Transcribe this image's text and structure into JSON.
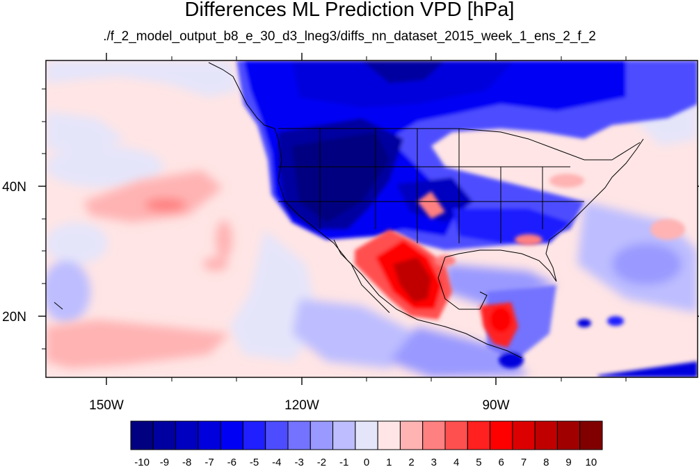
{
  "title": "Differences ML Prediction VPD [hPa]",
  "subtitle": "./f_2_model_output_b8_e_30_d3_lneg3/diffs_nn_dataset_2015_week_1_ens_2_f_2",
  "map": {
    "lon_labels": [
      "150W",
      "120W",
      "90W"
    ],
    "lat_labels": [
      "40N",
      "20N"
    ]
  },
  "colorbar": {
    "labels": [
      "-10",
      "-9",
      "-8",
      "-7",
      "-6",
      "-5",
      "-4",
      "-3",
      "-2",
      "-1",
      "0",
      "1",
      "2",
      "3",
      "4",
      "5",
      "6",
      "7",
      "8",
      "9",
      "10"
    ],
    "colors": [
      "#000080",
      "#0000A0",
      "#0000C0",
      "#0000DD",
      "#0000F5",
      "#1F1FFF",
      "#4D4DFF",
      "#7373FF",
      "#9999FF",
      "#BDBDFF",
      "#E5E5FA",
      "#FFE5E5",
      "#FFB3B3",
      "#FF8080",
      "#FF5050",
      "#FF2020",
      "#FF0000",
      "#DD0000",
      "#C00000",
      "#A00000",
      "#800000"
    ]
  }
}
